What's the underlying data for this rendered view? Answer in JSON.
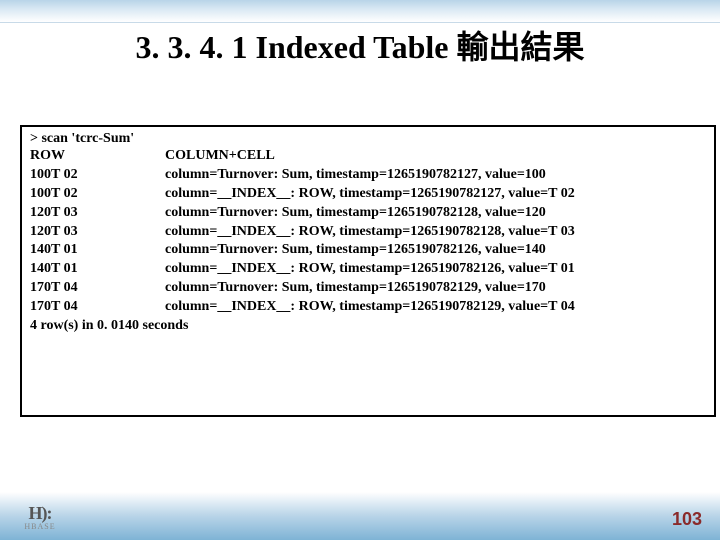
{
  "title": "3. 3. 4. 1 Indexed Table 輸出結果",
  "scanCommand": "> scan 'tcrc-Sum'",
  "header": {
    "row": "ROW",
    "col": "COLUMN+CELL"
  },
  "rows": [
    {
      "row": " 100T 02",
      "col": "column=Turnover: Sum, timestamp=1265190782127, value=100"
    },
    {
      "row": " 100T 02",
      "col": "column=__INDEX__: ROW, timestamp=1265190782127, value=T 02"
    },
    {
      "row": " 120T 03",
      "col": "column=Turnover: Sum, timestamp=1265190782128, value=120"
    },
    {
      "row": " 120T 03",
      "col": "column=__INDEX__: ROW, timestamp=1265190782128, value=T 03"
    },
    {
      "row": " 140T 01",
      "col": "column=Turnover: Sum, timestamp=1265190782126, value=140"
    },
    {
      "row": " 140T 01",
      "col": "column=__INDEX__: ROW, timestamp=1265190782126, value=T 01"
    },
    {
      "row": " 170T 04",
      "col": "column=Turnover: Sum, timestamp=1265190782129, value=170"
    },
    {
      "row": " 170T 04",
      "col": "column=__INDEX__: ROW, timestamp=1265190782129, value=T 04"
    }
  ],
  "footer": "4 row(s) in 0. 0140 seconds",
  "logo": {
    "top": "H): ",
    "bottom": "HBASE"
  },
  "pageNumber": "103"
}
